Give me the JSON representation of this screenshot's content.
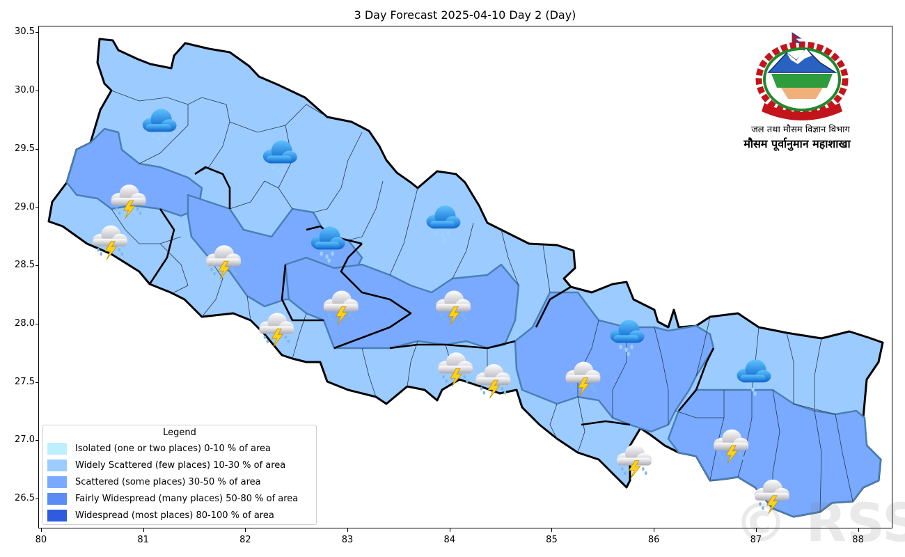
{
  "title": "3 Day Forecast 2025-04-10 Day 2 (Day)",
  "axes": {
    "x_ticks": [
      "80",
      "81",
      "82",
      "83",
      "84",
      "85",
      "86",
      "87",
      "88"
    ],
    "y_ticks": [
      "30.5",
      "30.0",
      "29.5",
      "29.0",
      "28.5",
      "28.0",
      "27.5",
      "27.0",
      "26.5"
    ],
    "x_range": [
      79.98,
      88.33
    ],
    "y_range": [
      26.25,
      30.55
    ]
  },
  "legend": {
    "title": "Legend",
    "items": [
      {
        "label": "Isolated (one or two places)  0-10 % of area",
        "color": "#bdf0ff"
      },
      {
        "label": "Widely Scattered (few places) 10-30 % of area",
        "color": "#9ccbff"
      },
      {
        "label": "Scattered (some places) 30-50  % of area",
        "color": "#7aaaff"
      },
      {
        "label": "Fairly Widespread (many places) 50-80 % of area",
        "color": "#5b8cf5"
      },
      {
        "label": "Widespread (most places) 80-100 % of area",
        "color": "#2f5be0"
      }
    ]
  },
  "organization": {
    "line1": "जल तथा मौसम विज्ञान विभाग",
    "line2": "मौसम पूर्वानुमान महाशाखा"
  },
  "watermark": "© RSS",
  "weather_icons": [
    {
      "type": "rain-cloud-icon",
      "lon": 81.15,
      "lat": 29.73
    },
    {
      "type": "rain-cloud-icon",
      "lon": 82.33,
      "lat": 29.46
    },
    {
      "type": "rain-cloud-icon",
      "lon": 82.8,
      "lat": 28.72
    },
    {
      "type": "rain-cloud-icon",
      "lon": 83.93,
      "lat": 28.9
    },
    {
      "type": "rain-cloud-icon",
      "lon": 85.73,
      "lat": 27.92
    },
    {
      "type": "rain-cloud-icon",
      "lon": 86.97,
      "lat": 27.58
    },
    {
      "type": "thunderstorm-icon",
      "lon": 80.85,
      "lat": 29.08
    },
    {
      "type": "thunderstorm-icon",
      "lon": 80.67,
      "lat": 28.73
    },
    {
      "type": "thunderstorm-icon",
      "lon": 81.78,
      "lat": 28.56
    },
    {
      "type": "thunderstorm-icon",
      "lon": 82.3,
      "lat": 27.98
    },
    {
      "type": "thunderstorm-icon",
      "lon": 82.93,
      "lat": 28.17
    },
    {
      "type": "thunderstorm-icon",
      "lon": 84.03,
      "lat": 28.17
    },
    {
      "type": "thunderstorm-icon",
      "lon": 84.05,
      "lat": 27.64
    },
    {
      "type": "thunderstorm-icon",
      "lon": 84.42,
      "lat": 27.54
    },
    {
      "type": "thunderstorm-icon",
      "lon": 85.3,
      "lat": 27.56
    },
    {
      "type": "thunderstorm-icon",
      "lon": 85.8,
      "lat": 26.85
    },
    {
      "type": "thunderstorm-icon",
      "lon": 86.75,
      "lat": 26.98
    },
    {
      "type": "thunderstorm-icon",
      "lon": 87.15,
      "lat": 26.55
    }
  ]
}
